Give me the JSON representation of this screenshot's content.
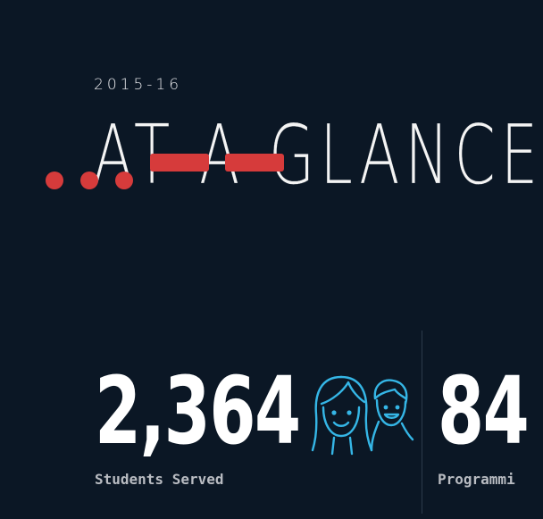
{
  "header": {
    "year": "2015-16",
    "title": "AT A GLANCE"
  },
  "stats": [
    {
      "value": "2,364",
      "label": "Students Served",
      "icon": "students-faces-icon"
    },
    {
      "value": "84",
      "label": "Programmi"
    }
  ],
  "colors": {
    "background": "#0b1725",
    "accent_red": "#d63b3b",
    "icon_cyan": "#35b6e6",
    "text_white": "#ffffff",
    "label_gray": "#b9bcc2"
  }
}
